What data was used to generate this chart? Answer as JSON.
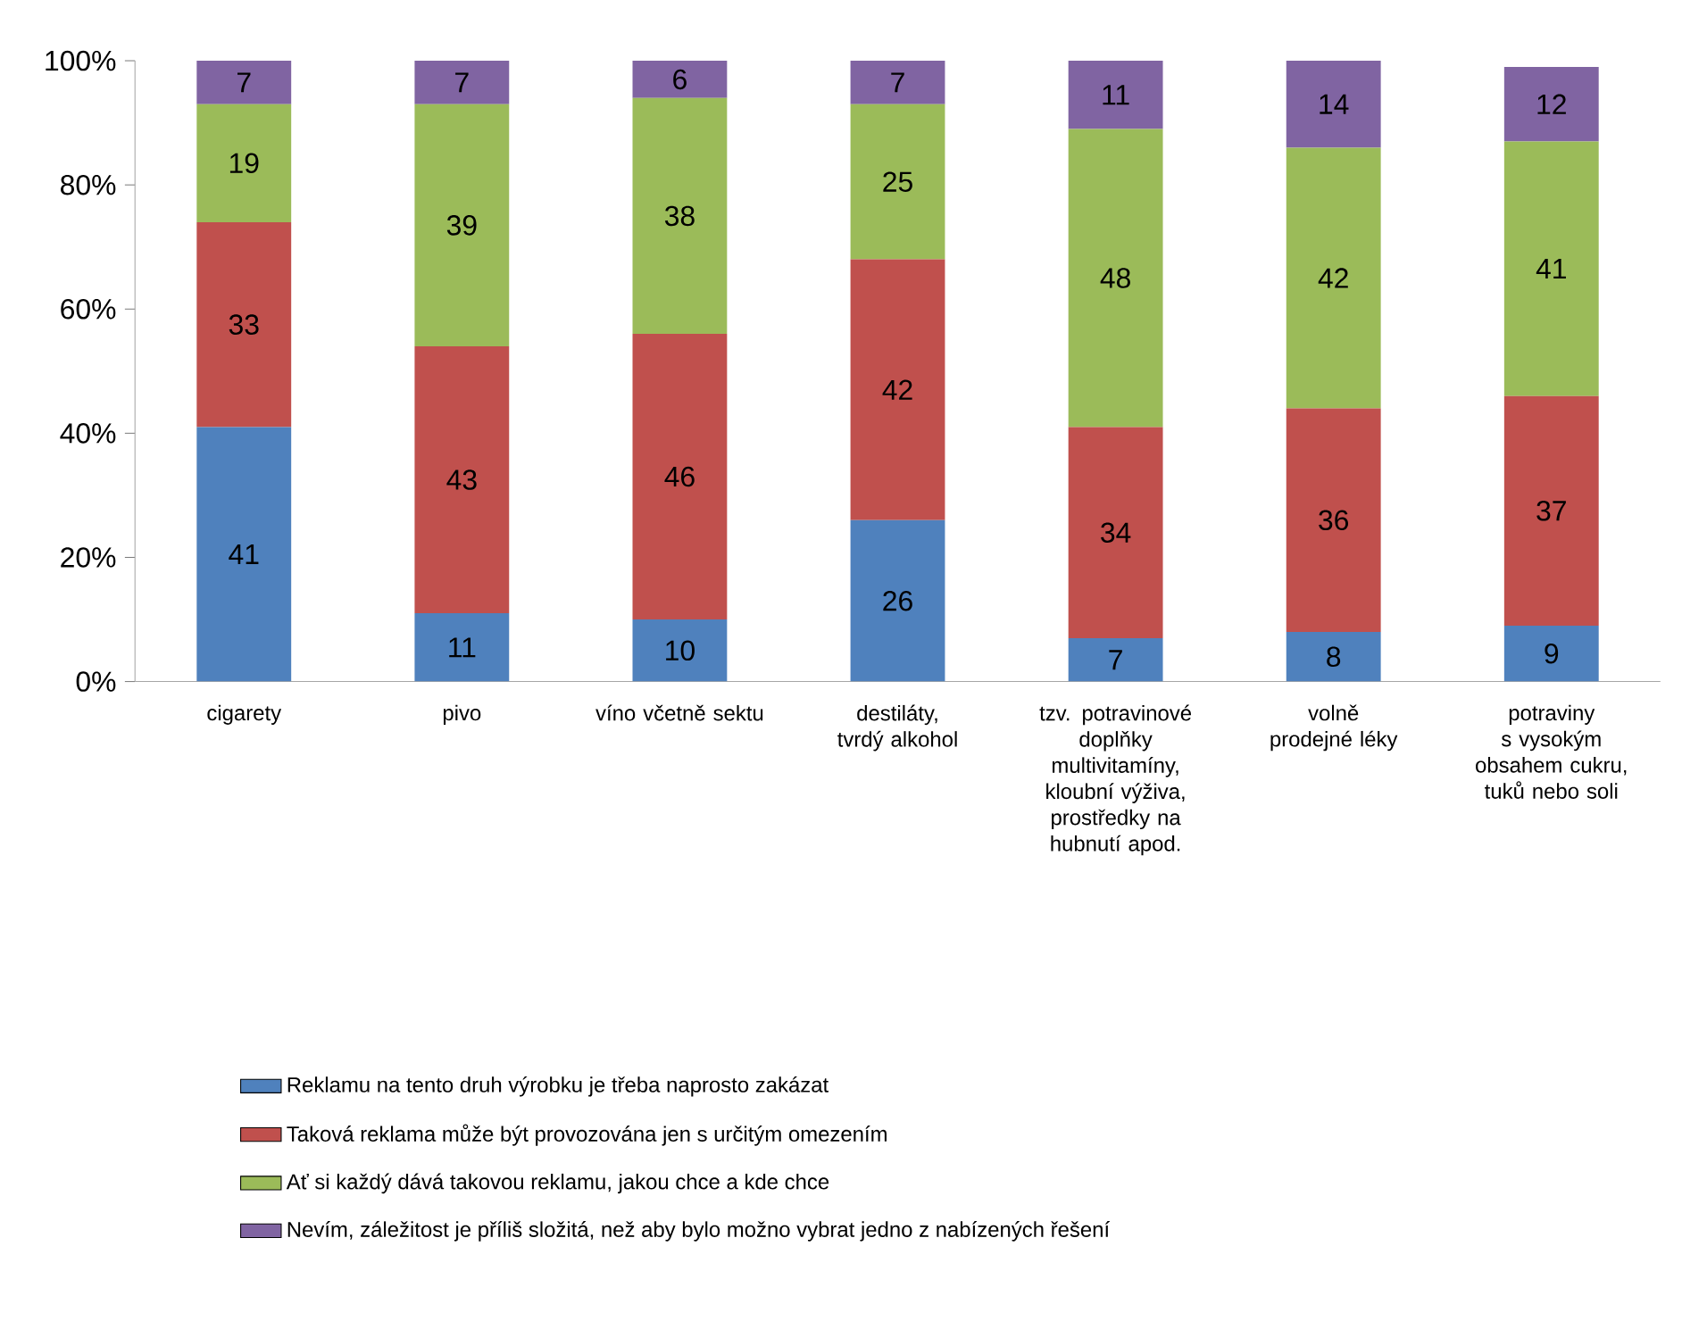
{
  "chart_data": {
    "type": "bar",
    "stacked": true,
    "data_labels": true,
    "legend": "bottom",
    "categories": [
      "cigarety",
      "pivo",
      "víno včetně sektu",
      "destiláty, tvrdý alkohol",
      "tzv. potravinové doplňky multivitamíny, kloubní výživa, prostředky na hubnutí apod.",
      "volně prodejné léky",
      "potraviny s vysokým obsahem cukru, tuků nebo soli"
    ],
    "ylim": [
      0,
      100
    ],
    "yticks": [
      {
        "value": 0,
        "label": "0%"
      },
      {
        "value": 20,
        "label": "20%"
      },
      {
        "value": 40,
        "label": "40%"
      },
      {
        "value": 60,
        "label": "60%"
      },
      {
        "value": 80,
        "label": "80%"
      },
      {
        "value": 100,
        "label": "100%"
      }
    ],
    "series": [
      {
        "name": "Reklamu na tento druh výrobku je třeba naprosto zakázat",
        "color": "#4f81bd",
        "values": [
          41,
          11,
          10,
          26,
          7,
          8,
          9
        ]
      },
      {
        "name": "Taková reklama může být provozována jen s určitým omezením",
        "color": "#c0504d",
        "values": [
          33,
          43,
          46,
          42,
          34,
          36,
          37
        ]
      },
      {
        "name": "Ať si každý dává takovou reklamu, jakou chce a kde chce",
        "color": "#9bbb59",
        "values": [
          19,
          39,
          38,
          25,
          48,
          42,
          41
        ]
      },
      {
        "name": "Nevím, záležitost je příliš složitá, než aby bylo možno vybrat jedno z nabízených řešení",
        "color": "#8064a2",
        "values": [
          7,
          7,
          6,
          7,
          11,
          14,
          12
        ]
      }
    ]
  }
}
